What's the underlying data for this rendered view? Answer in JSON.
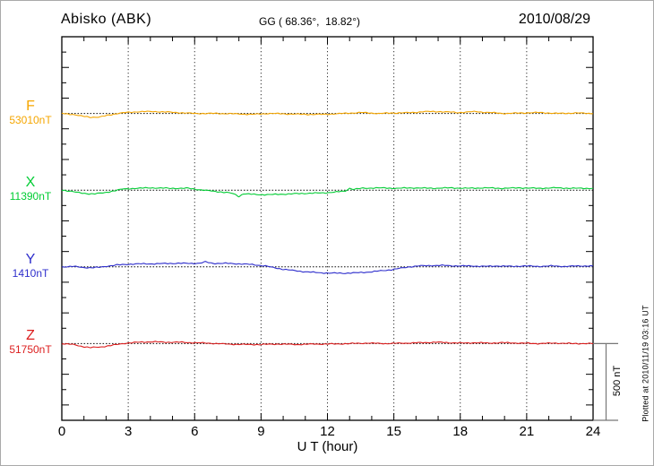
{
  "header": {
    "station": "Abisko (ABK)",
    "coords": "GG ( 68.36°,  18.82°)",
    "date": "2010/08/29"
  },
  "x_axis": {
    "label": "U T (hour)",
    "major_ticks": [
      0,
      3,
      6,
      9,
      12,
      15,
      18,
      21,
      24
    ],
    "minor_tick_every_hours": 1
  },
  "scale_bar": {
    "label": "500 nT",
    "span_nT": 500
  },
  "footer": {
    "note": "Plotted at 2010/11/19 03:16 UT"
  },
  "colors": {
    "F": "#F5A600",
    "X": "#00CC33",
    "Y": "#2E2ECC",
    "Z": "#DC1E1E",
    "frame": "#000000",
    "grid": "#333333",
    "baseline": "#111111",
    "scalebar": "#777777"
  },
  "chart_data": {
    "type": "line",
    "title": "Abisko (ABK) magnetogram 2010/08/29",
    "xlabel": "U T (hour)",
    "xlim": [
      0,
      24
    ],
    "x_major_ticks": [
      0,
      3,
      6,
      9,
      12,
      15,
      18,
      21,
      24
    ],
    "grid": "dotted vertical lines every 3 hours; dotted horizontal baseline per component",
    "y_tick_interval_nT": 100,
    "scale_bar_nT": 500,
    "series": [
      {
        "name": "F",
        "base_label": "53010nT",
        "base_value": 53010,
        "color": "#F5A600",
        "points": [
          [
            0,
            53010
          ],
          [
            0.5,
            53004
          ],
          [
            0.9,
            52992
          ],
          [
            1.3,
            52986
          ],
          [
            1.7,
            52986
          ],
          [
            2.1,
            52998
          ],
          [
            2.5,
            53010
          ],
          [
            2.9,
            53016
          ],
          [
            3.5,
            53022
          ],
          [
            4.3,
            53022
          ],
          [
            5.2,
            53016
          ],
          [
            6,
            53010
          ],
          [
            7,
            53010
          ],
          [
            8,
            53007
          ],
          [
            8.6,
            53004
          ],
          [
            9.4,
            53010
          ],
          [
            10.2,
            53007
          ],
          [
            11,
            53004
          ],
          [
            11.8,
            53004
          ],
          [
            12.7,
            53010
          ],
          [
            13.5,
            53016
          ],
          [
            14.3,
            53010
          ],
          [
            15,
            53013
          ],
          [
            15.9,
            53016
          ],
          [
            16.3,
            53022
          ],
          [
            17.1,
            53022
          ],
          [
            17.9,
            53016
          ],
          [
            18.7,
            53022
          ],
          [
            19.3,
            53016
          ],
          [
            20,
            53010
          ],
          [
            20.8,
            53013
          ],
          [
            21.6,
            53016
          ],
          [
            22.4,
            53010
          ],
          [
            23.2,
            53013
          ],
          [
            24,
            53010
          ]
        ]
      },
      {
        "name": "X",
        "base_label": "11390nT",
        "base_value": 11390,
        "color": "#00CC33",
        "points": [
          [
            0,
            11390
          ],
          [
            0.4,
            11384
          ],
          [
            0.8,
            11372
          ],
          [
            1.1,
            11367
          ],
          [
            1.5,
            11367
          ],
          [
            1.9,
            11372
          ],
          [
            2.3,
            11384
          ],
          [
            2.7,
            11396
          ],
          [
            3.3,
            11402
          ],
          [
            4.1,
            11405
          ],
          [
            4.9,
            11402
          ],
          [
            5.7,
            11402
          ],
          [
            6.4,
            11390
          ],
          [
            6.8,
            11384
          ],
          [
            7.2,
            11378
          ],
          [
            7.6,
            11372
          ],
          [
            7.85,
            11361
          ],
          [
            8,
            11349
          ],
          [
            8.2,
            11367
          ],
          [
            8.8,
            11361
          ],
          [
            9.4,
            11361
          ],
          [
            10,
            11364
          ],
          [
            10.6,
            11367
          ],
          [
            11.2,
            11370
          ],
          [
            11.8,
            11372
          ],
          [
            12.4,
            11378
          ],
          [
            12.8,
            11384
          ],
          [
            13,
            11402
          ],
          [
            13.2,
            11396
          ],
          [
            13.6,
            11402
          ],
          [
            14.2,
            11405
          ],
          [
            15.1,
            11402
          ],
          [
            15.9,
            11405
          ],
          [
            16.7,
            11402
          ],
          [
            17.5,
            11405
          ],
          [
            18.3,
            11402
          ],
          [
            19.1,
            11405
          ],
          [
            19.9,
            11402
          ],
          [
            20.7,
            11405
          ],
          [
            21.5,
            11402
          ],
          [
            22.3,
            11405
          ],
          [
            23.1,
            11402
          ],
          [
            24,
            11402
          ]
        ]
      },
      {
        "name": "Y",
        "base_label": "1410nT",
        "base_value": 1410,
        "color": "#2E2ECC",
        "points": [
          [
            0,
            1410
          ],
          [
            0.5,
            1413
          ],
          [
            0.9,
            1407
          ],
          [
            1.3,
            1404
          ],
          [
            1.7,
            1407
          ],
          [
            2.1,
            1416
          ],
          [
            2.5,
            1422
          ],
          [
            3.1,
            1428
          ],
          [
            3.7,
            1430
          ],
          [
            4.3,
            1430
          ],
          [
            4.9,
            1433
          ],
          [
            5.5,
            1433
          ],
          [
            6.2,
            1433
          ],
          [
            6.5,
            1442
          ],
          [
            6.8,
            1433
          ],
          [
            7.4,
            1433
          ],
          [
            8,
            1430
          ],
          [
            8.6,
            1425
          ],
          [
            9.2,
            1416
          ],
          [
            9.6,
            1404
          ],
          [
            10,
            1395
          ],
          [
            10.4,
            1387
          ],
          [
            11,
            1378
          ],
          [
            11.6,
            1372
          ],
          [
            12.2,
            1369
          ],
          [
            12.8,
            1369
          ],
          [
            13.4,
            1372
          ],
          [
            14,
            1378
          ],
          [
            14.4,
            1384
          ],
          [
            14.9,
            1392
          ],
          [
            15.3,
            1401
          ],
          [
            15.7,
            1410
          ],
          [
            16.1,
            1416
          ],
          [
            16.7,
            1419
          ],
          [
            17.3,
            1419
          ],
          [
            17.9,
            1416
          ],
          [
            18.5,
            1416
          ],
          [
            19.1,
            1413
          ],
          [
            19.7,
            1416
          ],
          [
            20.3,
            1413
          ],
          [
            20.9,
            1416
          ],
          [
            21.5,
            1413
          ],
          [
            22.1,
            1416
          ],
          [
            22.7,
            1413
          ],
          [
            23.4,
            1416
          ],
          [
            24,
            1416
          ]
        ]
      },
      {
        "name": "Z",
        "base_label": "51750nT",
        "base_value": 51750,
        "color": "#DC1E1E",
        "points": [
          [
            0,
            51750
          ],
          [
            0.5,
            51744
          ],
          [
            0.9,
            51732
          ],
          [
            1.3,
            51724
          ],
          [
            1.7,
            51727
          ],
          [
            2.1,
            51735
          ],
          [
            2.5,
            51744
          ],
          [
            2.9,
            51753
          ],
          [
            3.5,
            51759
          ],
          [
            4.1,
            51762
          ],
          [
            4.7,
            51759
          ],
          [
            5.3,
            51759
          ],
          [
            5.9,
            51756
          ],
          [
            6.6,
            51753
          ],
          [
            7.4,
            51747
          ],
          [
            8.2,
            51744
          ],
          [
            9,
            51744
          ],
          [
            9.8,
            51747
          ],
          [
            10.6,
            51744
          ],
          [
            11.4,
            51747
          ],
          [
            12.2,
            51747
          ],
          [
            13,
            51750
          ],
          [
            13.8,
            51753
          ],
          [
            14.6,
            51750
          ],
          [
            15.5,
            51753
          ],
          [
            16.3,
            51756
          ],
          [
            16.9,
            51759
          ],
          [
            17.5,
            51756
          ],
          [
            18.1,
            51753
          ],
          [
            18.7,
            51756
          ],
          [
            19.3,
            51753
          ],
          [
            19.9,
            51756
          ],
          [
            20.7,
            51753
          ],
          [
            21.5,
            51750
          ],
          [
            22.3,
            51753
          ],
          [
            23.1,
            51750
          ],
          [
            24,
            51750
          ]
        ]
      }
    ]
  }
}
